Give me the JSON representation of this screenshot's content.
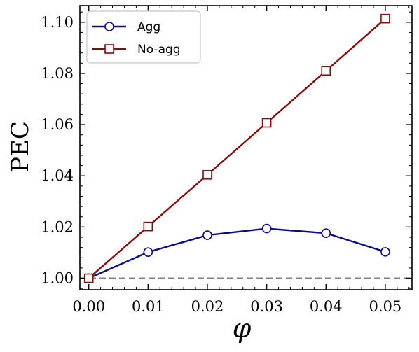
{
  "chart_data": {
    "type": "line",
    "title": "",
    "xlabel": "φ",
    "ylabel": "PEC",
    "xlim": [
      -0.0015,
      0.0545
    ],
    "ylim": [
      0.9955,
      1.1065
    ],
    "x": [
      0.0,
      0.01,
      0.02,
      0.03,
      0.04,
      0.05
    ],
    "xticks": [
      0.0,
      0.01,
      0.02,
      0.03,
      0.04,
      0.05
    ],
    "xtick_labels": [
      "0.00",
      "0.01",
      "0.02",
      "0.03",
      "0.04",
      "0.05"
    ],
    "yticks": [
      1.0,
      1.02,
      1.04,
      1.06,
      1.08,
      1.1
    ],
    "ytick_labels": [
      "1.00",
      "1.02",
      "1.04",
      "1.06",
      "1.08",
      "1.10"
    ],
    "grid": false,
    "legend_position": "top-left",
    "reference_line": {
      "y": 1.0,
      "style": "dashed",
      "color": "#808080"
    },
    "series": [
      {
        "name": "Agg",
        "marker": "circle",
        "color": "#0a0a8c",
        "values": [
          1.0,
          1.0102,
          1.0168,
          1.0194,
          1.0176,
          1.0103
        ]
      },
      {
        "name": "No-agg",
        "marker": "square",
        "color": "#8b0a0a",
        "values": [
          1.0,
          1.0202,
          1.0404,
          1.0607,
          1.081,
          1.1014
        ]
      }
    ]
  }
}
